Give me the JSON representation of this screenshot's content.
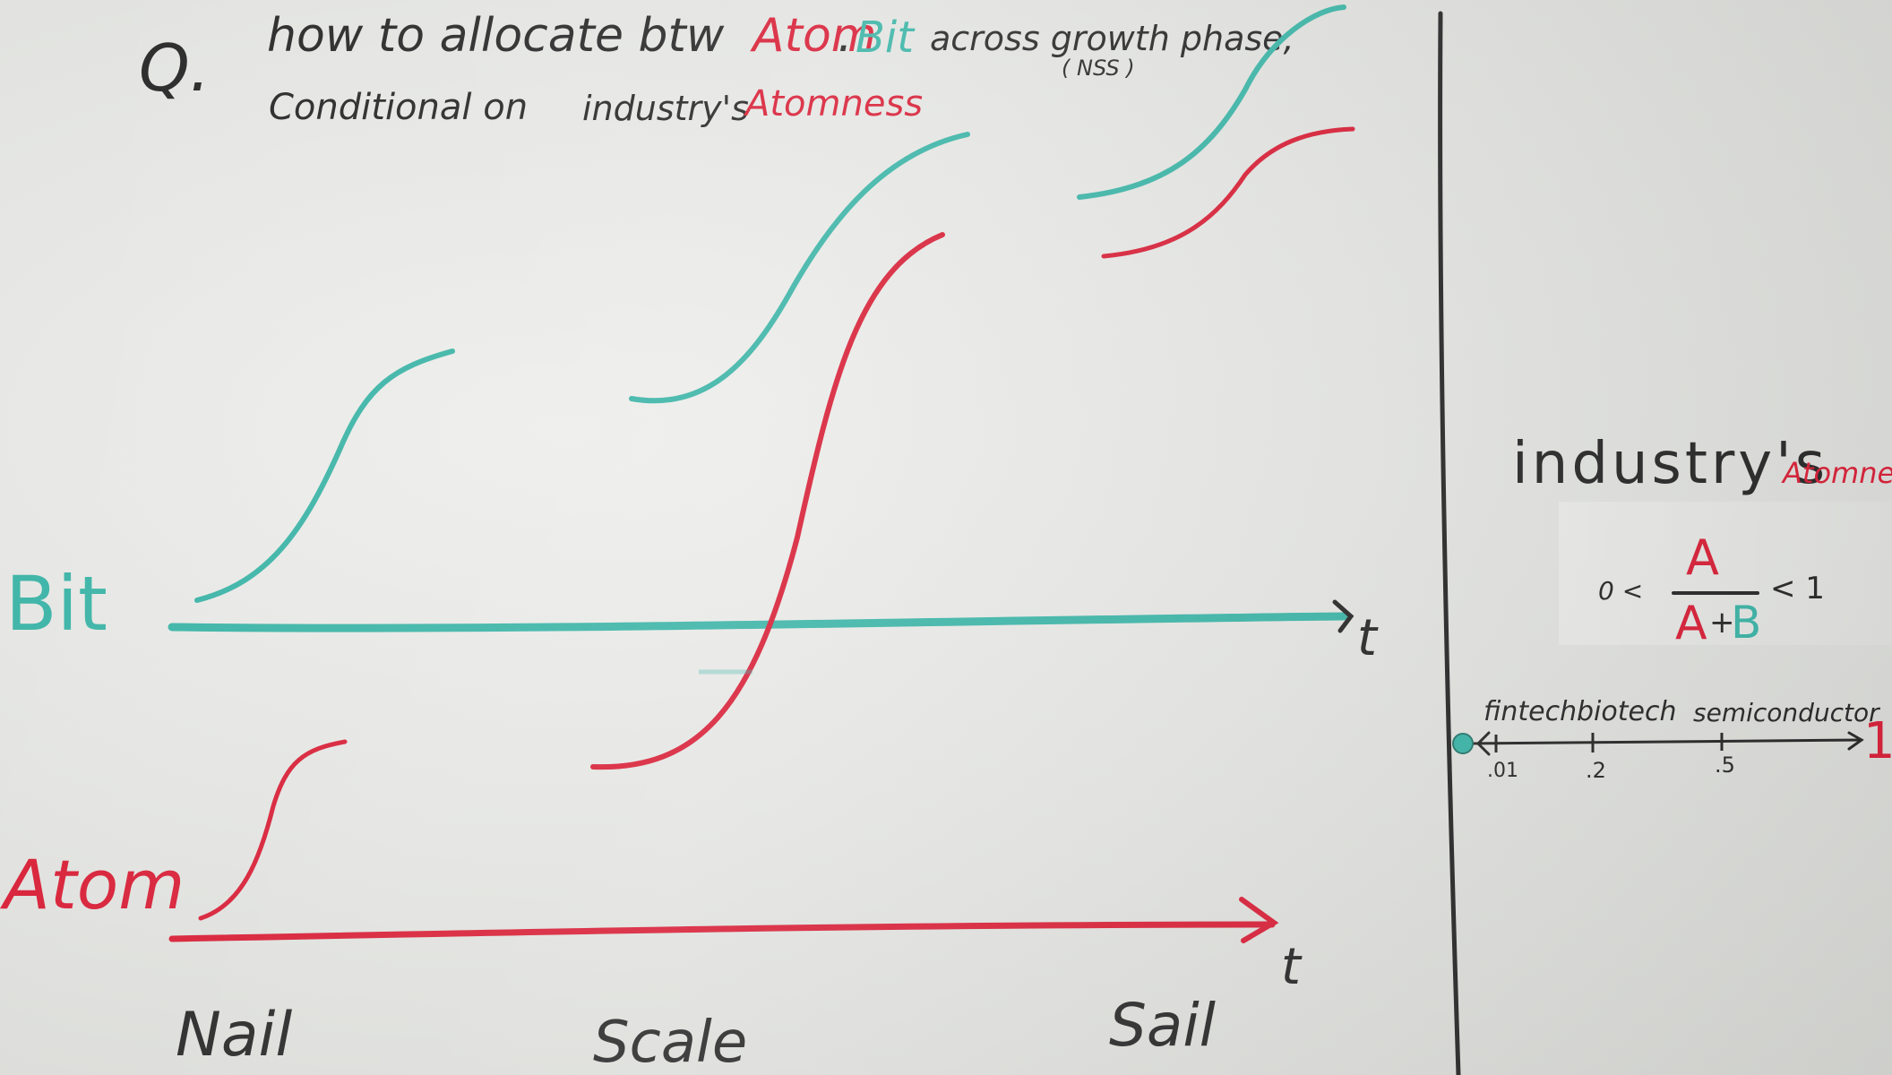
{
  "question": {
    "marker": "Q.",
    "line1_prefix": "how to allocate btw",
    "atom_word": "Atom",
    "dot": ".",
    "bit_word": "Bit",
    "line1_suffix": "across growth phase,",
    "nss_note": "( NSS )",
    "line2_prefix": "Conditional on",
    "line2_industry": "industry's",
    "atomness_word": "Atomness"
  },
  "axes": {
    "bit_label": "Bit",
    "atom_label": "Atom",
    "bit_t": "t",
    "atom_t": "t"
  },
  "phases": [
    "Nail",
    "Scale",
    "Sail"
  ],
  "sidebar": {
    "title": "industry's",
    "title_atomness": "Atomness",
    "lhs": "0 <",
    "numerator": "A",
    "denominator_a": "A",
    "denominator_plus": "+",
    "denominator_b": "B",
    "rhs": "< 1",
    "industries": [
      "fintech",
      "biotech",
      "semiconductor"
    ],
    "ticks": [
      ".01",
      ".2",
      ".5"
    ],
    "end_label": "1"
  },
  "colors": {
    "black_ink": "#2b2b2b",
    "red_ink": "#d8233a",
    "teal_ink": "#3fb5a8"
  }
}
